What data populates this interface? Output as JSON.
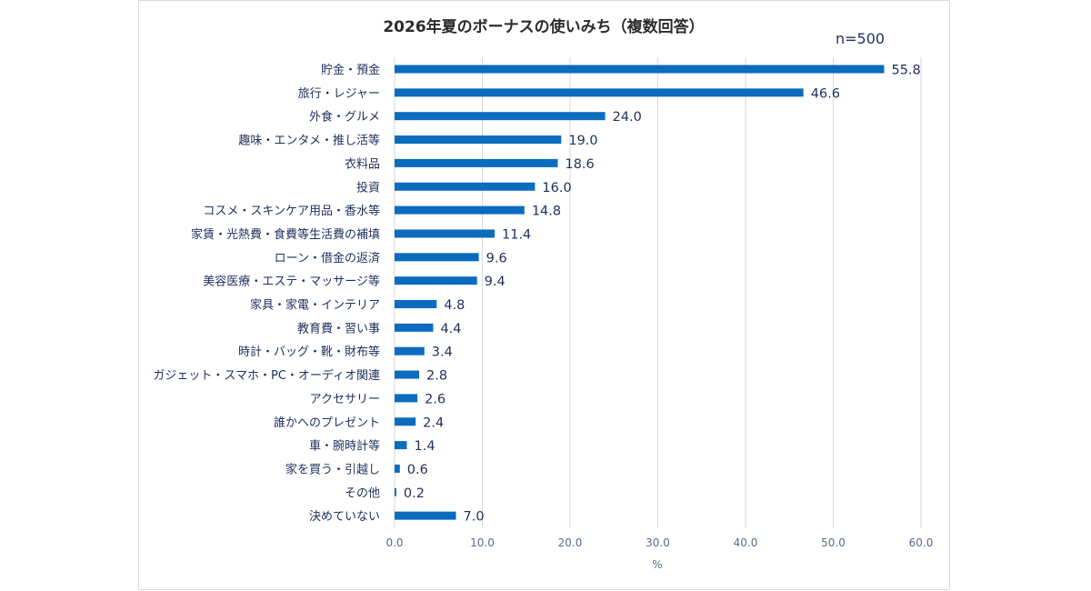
{
  "chart_data": {
    "type": "bar",
    "orientation": "horizontal",
    "title": "2026年夏のボーナスの使いみち（複数回答）",
    "sample_size": "n=500",
    "xlabel": "%",
    "xlim": [
      0,
      60
    ],
    "xticks": [
      "0.0",
      "10.0",
      "20.0",
      "30.0",
      "40.0",
      "50.0",
      "60.0"
    ],
    "grid": true,
    "bar_color": "#0b6cbf",
    "categories": [
      "貯金・預金",
      "旅行・レジャー",
      "外食・グルメ",
      "趣味・エンタメ・推し活等",
      "衣料品",
      "投資",
      "コスメ・スキンケア用品・香水等",
      "家賃・光熱費・食費等生活費の補填",
      "ローン・借金の返済",
      "美容医療・エステ・マッサージ等",
      "家具・家電・インテリア",
      "教育費・習い事",
      "時計・バッグ・靴・財布等",
      "ガジェット・スマホ・PC・オーディオ関連",
      "アクセサリー",
      "誰かへのプレゼント",
      "車・腕時計等",
      "家を買う・引越し",
      "その他",
      "決めていない"
    ],
    "values": [
      55.8,
      46.6,
      24.0,
      19.0,
      18.6,
      16.0,
      14.8,
      11.4,
      9.6,
      9.4,
      4.8,
      4.4,
      3.4,
      2.8,
      2.6,
      2.4,
      1.4,
      0.6,
      0.2,
      7.0
    ],
    "value_labels": [
      "55.8",
      "46.6",
      "24.0",
      "19.0",
      "18.6",
      "16.0",
      "14.8",
      "11.4",
      "9.6",
      "9.4",
      "4.8",
      "4.4",
      "3.4",
      "2.8",
      "2.6",
      "2.4",
      "1.4",
      "0.6",
      "0.2",
      "7.0"
    ]
  }
}
